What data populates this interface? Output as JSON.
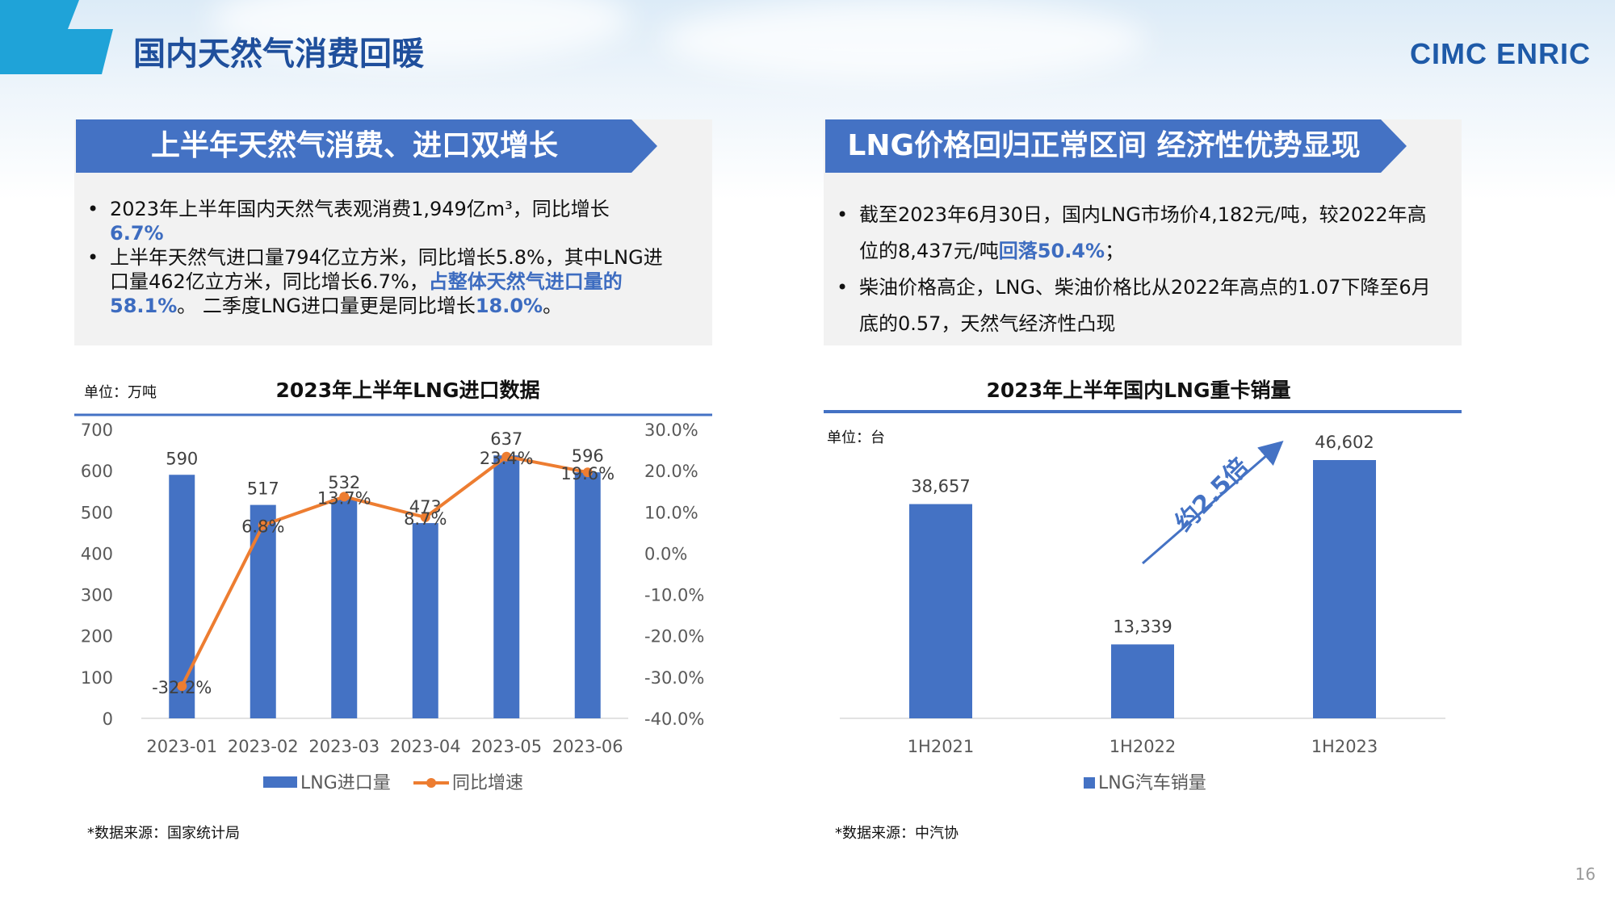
{
  "header": {
    "title": "国内天然气消费回暖",
    "logo": "CIMC ENRIC",
    "page_number": "16"
  },
  "left": {
    "banner": "上半年天然气消费、进口双增长",
    "b1_text": "2023年上半年国内天然气表观消费1,949亿m³，同比增长",
    "b1_hl": "6.7%",
    "b2_a": "上半年天然气进口量794亿立方米，同比增长5.8%，其中LNG进口量462亿立方米，同比增长6.7%，",
    "b2_hl1": "占整体天然气进口量的58.1%",
    "b2_b": "。 二季度LNG进口量更是同比增长",
    "b2_hl2": "18.0%",
    "b2_c": "。",
    "source": "*数据来源：国家统计局"
  },
  "right": {
    "banner": "LNG价格回归正常区间 经济性优势显现",
    "b1_a": "截至2023年6月30日，国内LNG市场价4,182元/吨，较2022年高位的8,437元/吨",
    "b1_hl": "回落50.4%",
    "b1_b": "；",
    "b2": "柴油价格高企，LNG、柴油价格比从2022年高点的1.07下降至6月底的0.57，天然气经济性凸现",
    "source": "*数据来源：中汽协"
  },
  "colors": {
    "bar": "#4472c4",
    "line": "#ed7d31",
    "accent": "#3d6cc0",
    "banner": "#4472c4"
  },
  "chart_data": [
    {
      "type": "bar",
      "title": "2023年上半年LNG进口数据",
      "unit_label": "单位：万吨",
      "categories": [
        "2023-01",
        "2023-02",
        "2023-03",
        "2023-04",
        "2023-05",
        "2023-06"
      ],
      "series": [
        {
          "name": "LNG进口量",
          "type": "bar",
          "values": [
            590,
            517,
            532,
            473,
            637,
            596
          ],
          "labels": [
            "590",
            "517",
            "532",
            "473",
            "637",
            "596"
          ]
        },
        {
          "name": "同比增速",
          "type": "line",
          "values": [
            -32.2,
            6.8,
            13.7,
            8.7,
            23.4,
            19.6
          ],
          "labels": [
            "-32.2%",
            "6.8%",
            "13.7%",
            "8.7%",
            "23.4%",
            "19.6%"
          ]
        }
      ],
      "ylim": [
        0,
        700
      ],
      "y_ticks": [
        "0",
        "100",
        "200",
        "300",
        "400",
        "500",
        "600",
        "700"
      ],
      "y2lim": [
        -40,
        30
      ],
      "y2_ticks": [
        "-40.0%",
        "-30.0%",
        "-20.0%",
        "-10.0%",
        "0.0%",
        "10.0%",
        "20.0%",
        "30.0%"
      ],
      "legend_position": "bottom",
      "grid": false
    },
    {
      "type": "bar",
      "title": "2023年上半年国内LNG重卡销量",
      "unit_label": "单位：台",
      "categories": [
        "1H2021",
        "1H2022",
        "1H2023"
      ],
      "series": [
        {
          "name": "LNG汽车销量",
          "values": [
            38657,
            13339,
            46602
          ],
          "labels": [
            "38,657",
            "13,339",
            "46,602"
          ]
        }
      ],
      "annotation": "约2.5倍",
      "legend_position": "bottom",
      "grid": false
    }
  ]
}
